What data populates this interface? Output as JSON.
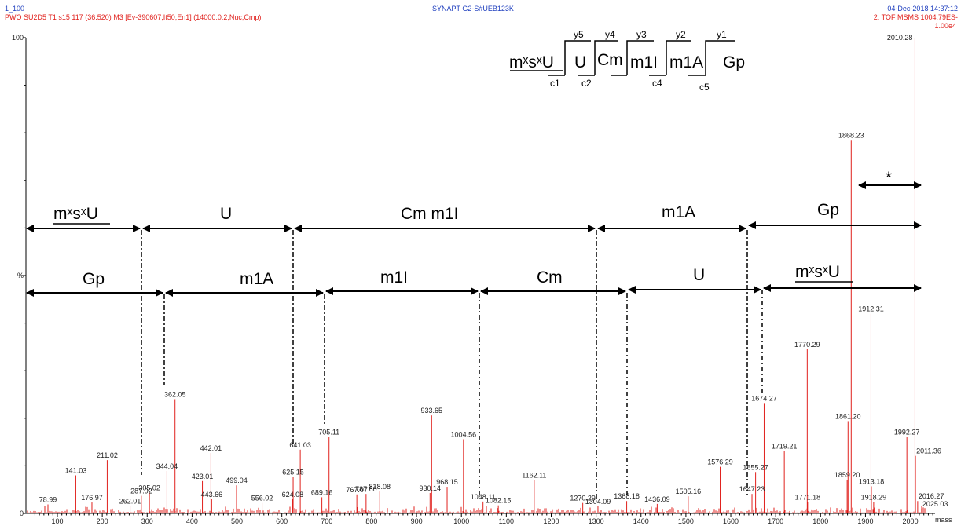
{
  "header": {
    "run_id": "1_100",
    "sample_line": "PWO SU2D5 T1 s15  117 (36.520) M3 [Ev-390607,It50,En1] (14000:0.2,Nuc,Cmp)",
    "instrument": "SYNAPT G2-S#UEB123K",
    "date_time": "04-Dec-2018  14:37:12",
    "scan_mode": "2: TOF MSMS 1004.79ES-",
    "intensity": "1.00e4"
  },
  "sequence": {
    "residues": [
      "mˣsˣU",
      "U",
      "Cm",
      "m1I",
      "m1A",
      "Gp"
    ],
    "y_ions": [
      "y5",
      "y4",
      "y3",
      "y2",
      "y1"
    ],
    "c_ions": [
      "c1",
      "c2",
      "c4",
      "c5"
    ]
  },
  "annotations": {
    "star": "*",
    "top_row": [
      "mˣsˣU",
      "U",
      "Cm m1I",
      "m1A",
      "Gp"
    ],
    "bottom_row": [
      "Gp",
      "m1A",
      "m1I",
      "Cm",
      "U",
      "mˣsˣU"
    ],
    "top_boundaries_mz": [
      300,
      636,
      1298,
      1630
    ],
    "bottom_boundaries_mz": [
      362,
      705,
      1050,
      1368,
      1674
    ]
  },
  "chart_data": {
    "type": "bar",
    "xlabel": "mass",
    "ylabel": "%",
    "xlim": [
      30,
      2055
    ],
    "ylim": [
      0,
      100
    ],
    "x_ticks": [
      100,
      200,
      300,
      400,
      500,
      600,
      700,
      800,
      900,
      1000,
      1100,
      1200,
      1300,
      1400,
      1500,
      1600,
      1700,
      1800,
      1900,
      2000
    ],
    "y_ticks": [
      {
        "value": 0,
        "label": "0"
      },
      {
        "value": 50,
        "label": "%"
      },
      {
        "value": 100,
        "label": "100"
      }
    ],
    "peaks": [
      {
        "mz": 78.99,
        "i": 1.9,
        "label": "78.99"
      },
      {
        "mz": 141.03,
        "i": 8.0,
        "label": "141.03"
      },
      {
        "mz": 176.97,
        "i": 2.3,
        "label": "176.97"
      },
      {
        "mz": 211.02,
        "i": 11.2,
        "label": "211.02"
      },
      {
        "mz": 262.01,
        "i": 1.6,
        "label": "262.01"
      },
      {
        "mz": 287.02,
        "i": 3.7,
        "label": "287.02"
      },
      {
        "mz": 305.02,
        "i": 4.4,
        "label": "305.02"
      },
      {
        "mz": 344.04,
        "i": 8.9,
        "label": "344.04"
      },
      {
        "mz": 362.05,
        "i": 24.0,
        "label": "362.05"
      },
      {
        "mz": 423.01,
        "i": 6.8,
        "label": "423.01"
      },
      {
        "mz": 442.01,
        "i": 12.7,
        "label": "442.01"
      },
      {
        "mz": 443.66,
        "i": 3.0,
        "label": "443.66"
      },
      {
        "mz": 499.04,
        "i": 5.9,
        "label": "499.04"
      },
      {
        "mz": 556.02,
        "i": 2.2,
        "label": "556.02"
      },
      {
        "mz": 624.08,
        "i": 3.0,
        "label": "624.08"
      },
      {
        "mz": 625.15,
        "i": 7.7,
        "label": "625.15"
      },
      {
        "mz": 641.03,
        "i": 13.4,
        "label": "641.03"
      },
      {
        "mz": 689.16,
        "i": 3.4,
        "label": "689.16"
      },
      {
        "mz": 705.11,
        "i": 16.1,
        "label": "705.11"
      },
      {
        "mz": 767.07,
        "i": 4.0,
        "label": "767.07"
      },
      {
        "mz": 787.6,
        "i": 4.1,
        "label": "787.60"
      },
      {
        "mz": 818.08,
        "i": 4.6,
        "label": "818.08"
      },
      {
        "mz": 930.14,
        "i": 4.3,
        "label": "930.14"
      },
      {
        "mz": 933.65,
        "i": 20.6,
        "label": "933.65"
      },
      {
        "mz": 968.15,
        "i": 5.6,
        "label": "968.15"
      },
      {
        "mz": 1004.56,
        "i": 15.6,
        "label": "1004.56"
      },
      {
        "mz": 1048.11,
        "i": 2.5,
        "label": "1048.11"
      },
      {
        "mz": 1082.15,
        "i": 1.7,
        "label": "1082.15"
      },
      {
        "mz": 1162.11,
        "i": 7.0,
        "label": "1162.11"
      },
      {
        "mz": 1270.29,
        "i": 2.2,
        "label": "1270.29"
      },
      {
        "mz": 1304.09,
        "i": 1.5,
        "label": "1304.09"
      },
      {
        "mz": 1368.18,
        "i": 2.6,
        "label": "1368.18"
      },
      {
        "mz": 1436.09,
        "i": 2.0,
        "label": "1436.09"
      },
      {
        "mz": 1505.16,
        "i": 3.6,
        "label": "1505.16"
      },
      {
        "mz": 1576.29,
        "i": 9.8,
        "label": "1576.29"
      },
      {
        "mz": 1647.23,
        "i": 4.1,
        "label": "1647.23"
      },
      {
        "mz": 1655.27,
        "i": 8.7,
        "label": "1655.27"
      },
      {
        "mz": 1674.27,
        "i": 23.2,
        "label": "1674.27"
      },
      {
        "mz": 1719.21,
        "i": 13.1,
        "label": "1719.21"
      },
      {
        "mz": 1770.29,
        "i": 34.5,
        "label": "1770.29"
      },
      {
        "mz": 1771.18,
        "i": 2.4,
        "label": "1771.18"
      },
      {
        "mz": 1859.2,
        "i": 7.1,
        "label": "1859.20"
      },
      {
        "mz": 1861.2,
        "i": 19.4,
        "label": "1861.20"
      },
      {
        "mz": 1868.23,
        "i": 78.5,
        "label": "1868.23"
      },
      {
        "mz": 1912.31,
        "i": 42.0,
        "label": "1912.31"
      },
      {
        "mz": 1913.18,
        "i": 5.7,
        "label": "1913.18"
      },
      {
        "mz": 1918.29,
        "i": 2.4,
        "label": "1918.29"
      },
      {
        "mz": 1992.27,
        "i": 16.1,
        "label": "1992.27"
      },
      {
        "mz": 2010.28,
        "i": 100.0,
        "label": "2010.28"
      },
      {
        "mz": 2011.36,
        "i": 12.1,
        "label": "2011.36"
      },
      {
        "mz": 2016.27,
        "i": 2.6,
        "label": "2016.27"
      },
      {
        "mz": 2025.03,
        "i": 1.0,
        "label": "2025.03"
      }
    ]
  }
}
